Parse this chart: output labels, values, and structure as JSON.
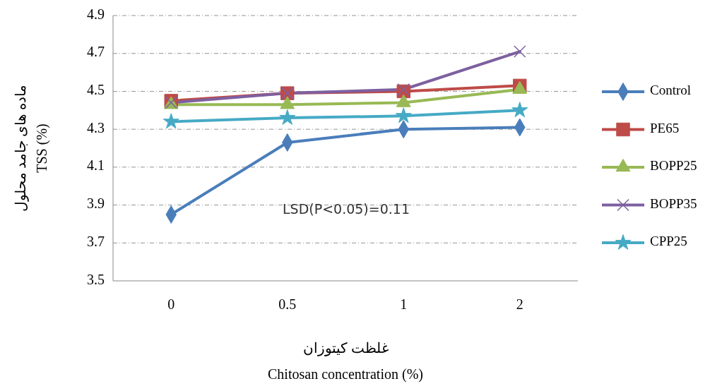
{
  "chart_data": {
    "type": "line",
    "ylabel": "ماده های جامد محلول\nTSS (%)",
    "xlabel": "غلظت کیتوزان\nChitosan concentration (%)",
    "categories": [
      "0",
      "0.5",
      "1",
      "2"
    ],
    "series": [
      {
        "name": "Control",
        "color": "#4a7ebb",
        "marker": "diamond",
        "values": [
          3.85,
          4.23,
          4.3,
          4.31
        ]
      },
      {
        "name": "PE65",
        "color": "#be4b48",
        "marker": "square",
        "values": [
          4.45,
          4.49,
          4.5,
          4.53
        ]
      },
      {
        "name": "BOPP25",
        "color": "#98b954",
        "marker": "triangle",
        "values": [
          4.43,
          4.43,
          4.44,
          4.51
        ]
      },
      {
        "name": "BOPP35",
        "color": "#7d60a0",
        "marker": "cross",
        "values": [
          4.44,
          4.49,
          4.51,
          4.71
        ]
      },
      {
        "name": "CPP25",
        "color": "#46aac5",
        "marker": "star",
        "values": [
          4.34,
          4.36,
          4.37,
          4.4
        ]
      }
    ],
    "ylim": [
      3.5,
      4.9
    ],
    "yticks": [
      3.5,
      3.7,
      3.9,
      4.1,
      4.3,
      4.5,
      4.7,
      4.9
    ],
    "grid": "y",
    "legend": "right",
    "annotations": [
      "LSD(P<0.05)=0.11"
    ]
  }
}
